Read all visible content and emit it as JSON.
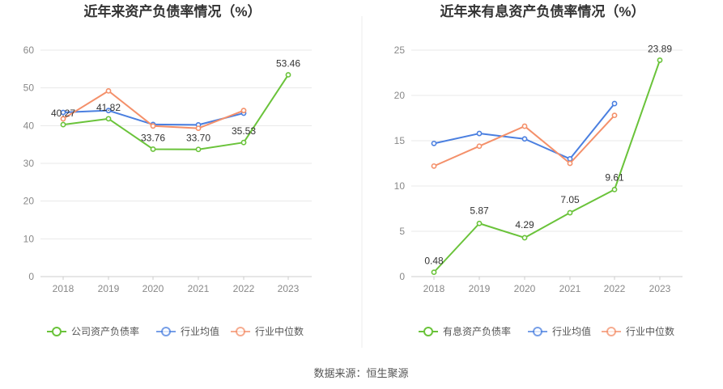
{
  "source": "数据来源：恒生聚源",
  "colors": {
    "primary": "#6ac33a",
    "average": "#4a7fe0",
    "median": "#f4906a"
  },
  "chart_data": [
    {
      "type": "line",
      "title": "近年来资产负债率情况（%）",
      "categories": [
        "2018",
        "2019",
        "2020",
        "2021",
        "2022",
        "2023"
      ],
      "ylim": [
        0,
        60
      ],
      "yticks": [
        "0",
        "10",
        "20",
        "30",
        "40",
        "50",
        "60"
      ],
      "grid": true,
      "legend_placement": "bottom",
      "series": [
        {
          "name": "公司资产负债率",
          "values": [
            40.27,
            41.82,
            33.76,
            33.7,
            35.53,
            53.46
          ],
          "labels": [
            "40.27",
            "41.82",
            "33.76",
            "33.70",
            "35.53",
            "53.46"
          ],
          "color": "#6ac33a"
        },
        {
          "name": "行业均值",
          "values": [
            43.5,
            44.0,
            40.3,
            40.2,
            43.3,
            null
          ],
          "color": "#4a7fe0"
        },
        {
          "name": "行业中位数",
          "values": [
            41.8,
            49.2,
            39.9,
            39.3,
            44.0,
            null
          ],
          "color": "#f4906a"
        }
      ]
    },
    {
      "type": "line",
      "title": "近年来有息资产负债率情况（%）",
      "categories": [
        "2018",
        "2019",
        "2020",
        "2021",
        "2022",
        "2023"
      ],
      "ylim": [
        0,
        25
      ],
      "yticks": [
        "0",
        "5",
        "10",
        "15",
        "20",
        "25"
      ],
      "grid": true,
      "legend_placement": "bottom",
      "series": [
        {
          "name": "有息资产负债率",
          "values": [
            0.48,
            5.87,
            4.29,
            7.05,
            9.61,
            23.89
          ],
          "labels": [
            "0.48",
            "5.87",
            "4.29",
            "7.05",
            "9.61",
            "23.89"
          ],
          "color": "#6ac33a"
        },
        {
          "name": "行业均值",
          "values": [
            14.7,
            15.8,
            15.2,
            13.0,
            19.1,
            null
          ],
          "color": "#4a7fe0"
        },
        {
          "name": "行业中位数",
          "values": [
            12.2,
            14.4,
            16.6,
            12.5,
            17.8,
            null
          ],
          "color": "#f4906a"
        }
      ]
    }
  ]
}
